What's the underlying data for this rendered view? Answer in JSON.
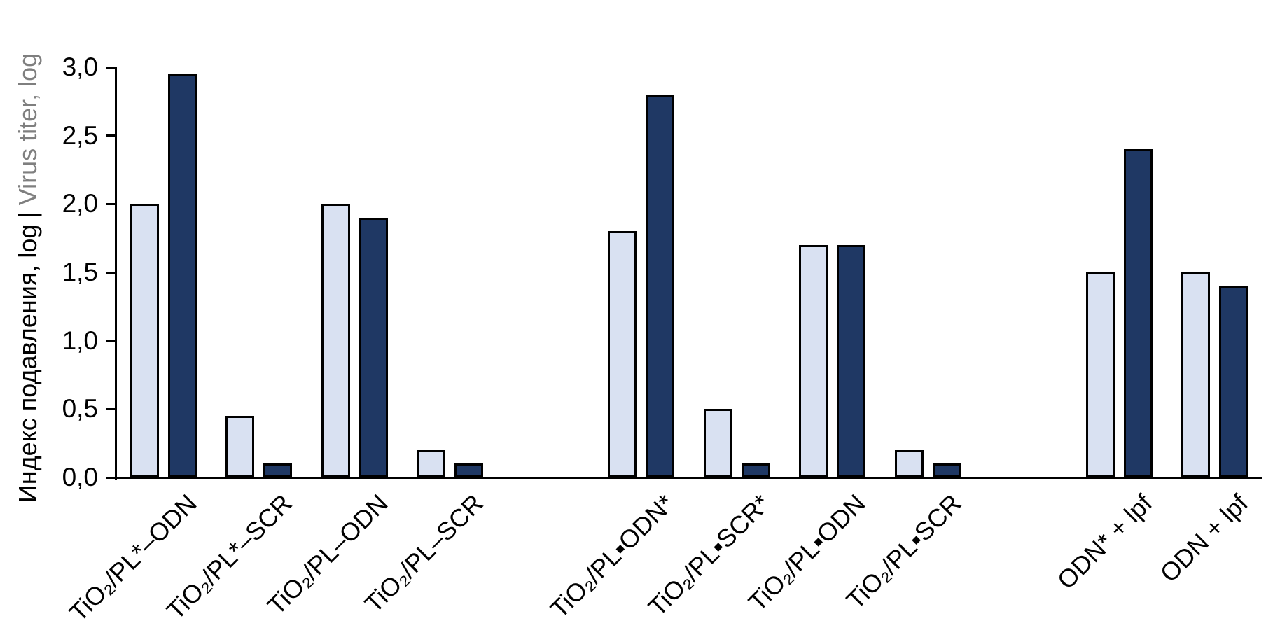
{
  "chart_data": {
    "type": "bar",
    "title": "",
    "y_axis": {
      "label_primary": "Индекс подавления, log",
      "separator": "|",
      "label_secondary": "Virus titer, log",
      "range": [
        0,
        3
      ],
      "tick_step": 0.5,
      "tick_labels": [
        "0,0",
        "0,5",
        "1,0",
        "1,5",
        "2,0",
        "2,5",
        "3,0"
      ],
      "decimal_style": "comma"
    },
    "categories": [
      "TiO₂/PL*–ODN",
      "TiO₂/PL*–SCR",
      "TiO₂/PL–ODN",
      "TiO₂/PL–SCR",
      "TiO₂/PL▪ODN*",
      "TiO₂/PL▪SCR*",
      "TiO₂/PL▪ODN",
      "TiO₂/PL▪SCR",
      "ODN* + lpf",
      "ODN + lpf"
    ],
    "category_slots": [
      0,
      1,
      2,
      3,
      5,
      6,
      7,
      8,
      10,
      11
    ],
    "slots_total": 12,
    "series": [
      {
        "name": "light-blue",
        "color": "#D9E1F2",
        "values": [
          2.0,
          0.45,
          2.0,
          0.2,
          1.8,
          0.5,
          1.7,
          0.2,
          1.5,
          1.5
        ]
      },
      {
        "name": "dark-navy",
        "color": "#1F3864",
        "values": [
          2.95,
          0.1,
          1.9,
          0.1,
          2.8,
          0.1,
          1.7,
          0.1,
          2.4,
          1.4
        ]
      }
    ],
    "bar_border_color": "#000000",
    "grid": false,
    "legend": "none",
    "colors": {
      "axis": "#000000",
      "tick_text": "#000000",
      "secondary_label_gray": "#7F7F7F",
      "background": "#FFFFFF"
    }
  }
}
